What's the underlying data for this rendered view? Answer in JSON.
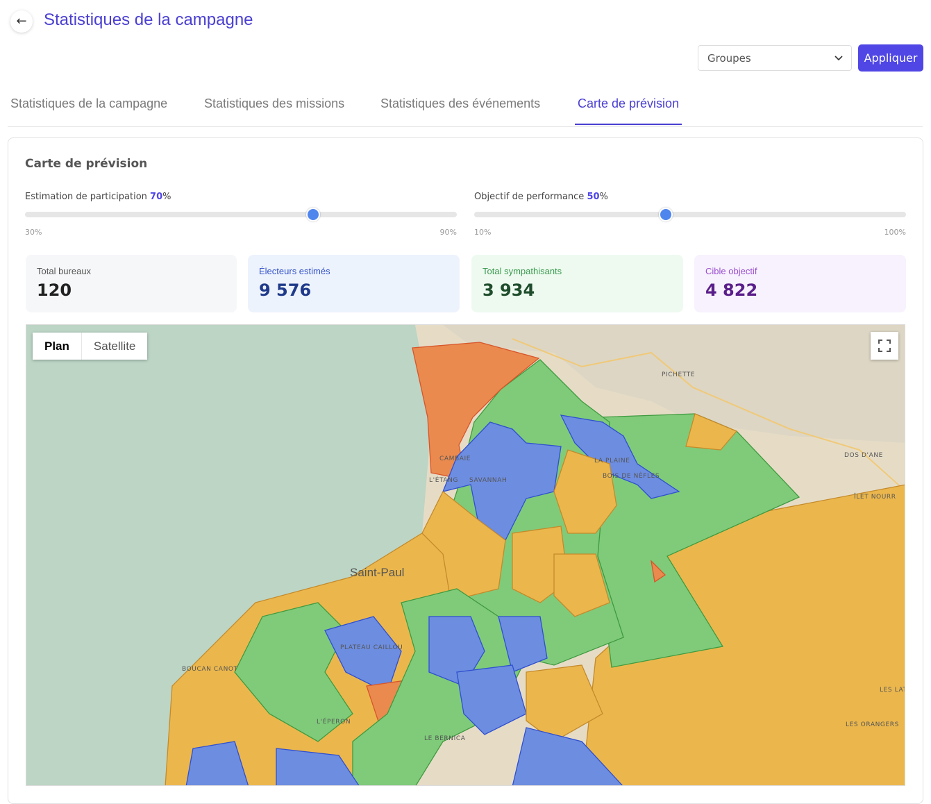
{
  "header": {
    "title": "Statistiques de la campagne"
  },
  "filter": {
    "select": "Groupes",
    "button": "Appliquer"
  },
  "tabs": {
    "items": [
      "Statistiques de la campagne",
      "Statistiques des missions",
      "Statistiques des événements",
      "Carte de prévision"
    ],
    "active": 3
  },
  "card": {
    "title": "Carte de prévision",
    "sliders": [
      {
        "label": "Estimation de participation",
        "value": "70",
        "unit": "%",
        "min": "30%",
        "max": "90%"
      },
      {
        "label": "Objectif de performance",
        "value": "50",
        "unit": "%",
        "min": "10%",
        "max": "100%"
      }
    ],
    "stats": [
      {
        "label": "Total bureaux",
        "value": "120"
      },
      {
        "label": "Électeurs estimés",
        "value": "9 576"
      },
      {
        "label": "Total sympathisants",
        "value": "3 934"
      },
      {
        "label": "Cible objectif",
        "value": "4 822"
      }
    ]
  },
  "map": {
    "modes": [
      "Plan",
      "Satellite"
    ],
    "labels": [
      "PICHETTE",
      "DOS D'ANE",
      "ÎLET NOURR",
      "CAMBAIE",
      "LA PLAINE",
      "BOIS DE NÈFLES",
      "L'ÉTANG",
      "SAVANNAH",
      "Saint-Paul",
      "PLATEAU CAILLOU",
      "BOUCAN CANOT",
      "L'ÉPERON",
      "LE BERNICA",
      "LES LAT",
      "LES ORANGERS"
    ]
  }
}
